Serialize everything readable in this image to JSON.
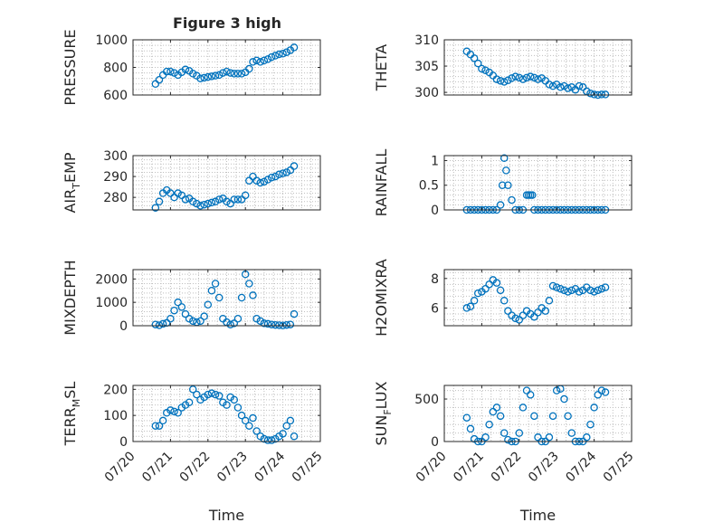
{
  "figure": {
    "title": "Figure 3 high"
  },
  "chart_data": [
    {
      "type": "scatter",
      "ylabel": "PRESSURE",
      "xlim": [
        "07/20",
        "07/25"
      ],
      "ylim": [
        600,
        1000
      ],
      "yticks": [
        "600",
        "800",
        "1000"
      ],
      "x_ticks": [],
      "x": [
        20.6,
        20.7,
        20.8,
        20.9,
        21.0,
        21.1,
        21.2,
        21.3,
        21.4,
        21.5,
        21.6,
        21.7,
        21.8,
        21.9,
        22.0,
        22.1,
        22.2,
        22.3,
        22.4,
        22.5,
        22.6,
        22.7,
        22.8,
        22.9,
        23.0,
        23.1,
        23.2,
        23.3,
        23.4,
        23.5,
        23.6,
        23.7,
        23.8,
        23.9,
        24.0,
        24.1,
        24.2,
        24.3
      ],
      "y": [
        680,
        710,
        745,
        770,
        770,
        760,
        745,
        765,
        785,
        775,
        755,
        740,
        720,
        725,
        730,
        735,
        740,
        745,
        760,
        770,
        760,
        755,
        755,
        755,
        765,
        790,
        840,
        850,
        840,
        850,
        860,
        875,
        885,
        895,
        900,
        910,
        925,
        945
      ]
    },
    {
      "type": "scatter",
      "ylabel": "THETA",
      "xlim": [
        "07/20",
        "07/25"
      ],
      "ylim": [
        299.5,
        310
      ],
      "yticks": [
        "300",
        "305",
        "310"
      ],
      "x_ticks": [],
      "x": [
        20.6,
        20.7,
        20.8,
        20.9,
        21.0,
        21.1,
        21.2,
        21.3,
        21.4,
        21.5,
        21.6,
        21.7,
        21.8,
        21.9,
        22.0,
        22.1,
        22.2,
        22.3,
        22.4,
        22.5,
        22.6,
        22.7,
        22.8,
        22.9,
        23.0,
        23.1,
        23.2,
        23.3,
        23.4,
        23.5,
        23.6,
        23.7,
        23.8,
        23.9,
        24.0,
        24.1,
        24.2,
        24.3
      ],
      "y": [
        307.8,
        307.2,
        306.5,
        305.5,
        304.5,
        304.2,
        303.8,
        303.2,
        302.5,
        302.2,
        302.0,
        302.3,
        302.7,
        303.0,
        302.8,
        302.5,
        302.8,
        303.0,
        302.8,
        302.5,
        302.7,
        302.2,
        301.5,
        301.2,
        301.5,
        301.0,
        301.2,
        300.8,
        301.0,
        300.5,
        301.2,
        301.0,
        300.2,
        299.8,
        299.6,
        299.5,
        299.6,
        299.6
      ]
    },
    {
      "type": "scatter",
      "ylabel": "AIR",
      "ylabel_sub": "T",
      "ylabel_rest": "EMP",
      "xlim": [
        "07/20",
        "07/25"
      ],
      "ylim": [
        274,
        300
      ],
      "yticks": [
        "280",
        "290",
        "300"
      ],
      "x_ticks": [],
      "x": [
        20.6,
        20.7,
        20.8,
        20.9,
        21.0,
        21.1,
        21.2,
        21.3,
        21.4,
        21.5,
        21.6,
        21.7,
        21.8,
        21.9,
        22.0,
        22.1,
        22.2,
        22.3,
        22.4,
        22.5,
        22.6,
        22.7,
        22.8,
        22.9,
        23.0,
        23.1,
        23.2,
        23.3,
        23.4,
        23.5,
        23.6,
        23.7,
        23.8,
        23.9,
        24.0,
        24.1,
        24.2,
        24.3
      ],
      "y": [
        275,
        278,
        282,
        283.5,
        282,
        280,
        282,
        281,
        279,
        279.5,
        278,
        277,
        276,
        276.5,
        277,
        277.5,
        278,
        279,
        279.5,
        278,
        277,
        279,
        279,
        279,
        281,
        288,
        290,
        288,
        287,
        287.5,
        288.5,
        289.5,
        290,
        291,
        291.5,
        292,
        293,
        295
      ]
    },
    {
      "type": "scatter",
      "ylabel": "RAINFALL",
      "xlim": [
        "07/20",
        "07/25"
      ],
      "ylim": [
        0,
        1.1
      ],
      "yticks": [
        "0",
        "0.5",
        "1"
      ],
      "x_ticks": [],
      "x": [
        20.6,
        20.7,
        20.8,
        20.9,
        21.0,
        21.1,
        21.2,
        21.3,
        21.4,
        21.5,
        21.55,
        21.6,
        21.65,
        21.7,
        21.8,
        21.9,
        22.0,
        22.1,
        22.2,
        22.25,
        22.3,
        22.35,
        22.4,
        22.5,
        22.6,
        22.7,
        22.8,
        22.9,
        23.0,
        23.1,
        23.2,
        23.3,
        23.4,
        23.5,
        23.6,
        23.7,
        23.8,
        23.9,
        24.0,
        24.1,
        24.2,
        24.3
      ],
      "y": [
        0,
        0,
        0,
        0,
        0,
        0,
        0,
        0,
        0,
        0.1,
        0.5,
        1.05,
        0.8,
        0.5,
        0.2,
        0,
        0,
        0,
        0.3,
        0.3,
        0.3,
        0.3,
        0,
        0,
        0,
        0,
        0,
        0,
        0,
        0,
        0,
        0,
        0,
        0,
        0,
        0,
        0,
        0,
        0,
        0,
        0,
        0
      ]
    },
    {
      "type": "scatter",
      "ylabel": "MIXDEPTH",
      "xlim": [
        "07/20",
        "07/25"
      ],
      "ylim": [
        0,
        2400
      ],
      "yticks": [
        "0",
        "1000",
        "2000"
      ],
      "x_ticks": [],
      "x": [
        20.6,
        20.7,
        20.8,
        20.9,
        21.0,
        21.1,
        21.2,
        21.3,
        21.4,
        21.5,
        21.6,
        21.7,
        21.8,
        21.9,
        22.0,
        22.1,
        22.2,
        22.3,
        22.4,
        22.5,
        22.6,
        22.7,
        22.8,
        22.9,
        23.0,
        23.1,
        23.2,
        23.3,
        23.4,
        23.5,
        23.6,
        23.7,
        23.8,
        23.9,
        24.0,
        24.1,
        24.2,
        24.3
      ],
      "y": [
        50,
        20,
        80,
        120,
        300,
        650,
        1000,
        800,
        500,
        300,
        200,
        150,
        200,
        400,
        900,
        1500,
        1800,
        1200,
        300,
        150,
        50,
        100,
        300,
        1200,
        2200,
        1800,
        1300,
        300,
        200,
        100,
        80,
        50,
        30,
        20,
        10,
        30,
        50,
        500
      ]
    },
    {
      "type": "scatter",
      "ylabel": "H2OMIXRA",
      "xlim": [
        "07/20",
        "07/25"
      ],
      "ylim": [
        4.8,
        8.6
      ],
      "yticks": [
        "6",
        "8"
      ],
      "x_ticks": [],
      "x": [
        20.6,
        20.7,
        20.8,
        20.9,
        21.0,
        21.1,
        21.2,
        21.3,
        21.4,
        21.5,
        21.6,
        21.7,
        21.8,
        21.9,
        22.0,
        22.1,
        22.2,
        22.3,
        22.4,
        22.5,
        22.6,
        22.7,
        22.8,
        22.9,
        23.0,
        23.1,
        23.2,
        23.3,
        23.4,
        23.5,
        23.6,
        23.7,
        23.8,
        23.9,
        24.0,
        24.1,
        24.2,
        24.3
      ],
      "y": [
        6.0,
        6.1,
        6.5,
        7.0,
        7.1,
        7.3,
        7.6,
        7.9,
        7.7,
        7.2,
        6.5,
        5.8,
        5.5,
        5.3,
        5.2,
        5.5,
        5.8,
        5.6,
        5.4,
        5.7,
        6.0,
        5.8,
        6.5,
        7.5,
        7.4,
        7.3,
        7.2,
        7.1,
        7.2,
        7.3,
        7.1,
        7.2,
        7.4,
        7.2,
        7.1,
        7.2,
        7.3,
        7.4
      ]
    },
    {
      "type": "scatter",
      "ylabel": "TERR",
      "ylabel_sub": "M",
      "ylabel_rest": "SL",
      "xlim": [
        "07/20",
        "07/25"
      ],
      "ylim": [
        0,
        215
      ],
      "yticks": [
        "0",
        "100",
        "200"
      ],
      "x_ticks": [
        "07/20",
        "07/21",
        "07/22",
        "07/23",
        "07/24",
        "07/25"
      ],
      "xlabel": "Time",
      "x": [
        20.6,
        20.7,
        20.8,
        20.9,
        21.0,
        21.1,
        21.2,
        21.3,
        21.4,
        21.5,
        21.6,
        21.7,
        21.8,
        21.9,
        22.0,
        22.1,
        22.2,
        22.3,
        22.4,
        22.5,
        22.6,
        22.7,
        22.8,
        22.9,
        23.0,
        23.1,
        23.2,
        23.3,
        23.4,
        23.5,
        23.6,
        23.7,
        23.8,
        23.9,
        24.0,
        24.1,
        24.2,
        24.3
      ],
      "y": [
        60,
        60,
        80,
        110,
        120,
        115,
        110,
        130,
        140,
        150,
        200,
        180,
        160,
        170,
        180,
        185,
        180,
        175,
        150,
        140,
        170,
        160,
        130,
        100,
        80,
        60,
        90,
        40,
        20,
        10,
        5,
        5,
        10,
        20,
        30,
        60,
        80,
        20
      ]
    },
    {
      "type": "scatter",
      "ylabel": "SUN",
      "ylabel_sub": "F",
      "ylabel_rest": "LUX",
      "xlim": [
        "07/20",
        "07/25"
      ],
      "ylim": [
        0,
        660
      ],
      "yticks": [
        "0",
        "500"
      ],
      "x_ticks": [
        "07/20",
        "07/21",
        "07/22",
        "07/23",
        "07/24",
        "07/25"
      ],
      "xlabel": "Time",
      "x": [
        20.6,
        20.7,
        20.8,
        20.9,
        21.0,
        21.1,
        21.2,
        21.3,
        21.4,
        21.5,
        21.6,
        21.7,
        21.8,
        21.9,
        22.0,
        22.1,
        22.2,
        22.3,
        22.4,
        22.5,
        22.6,
        22.7,
        22.8,
        22.9,
        23.0,
        23.1,
        23.2,
        23.3,
        23.4,
        23.5,
        23.6,
        23.7,
        23.8,
        23.9,
        24.0,
        24.1,
        24.2,
        24.3
      ],
      "y": [
        280,
        150,
        30,
        0,
        0,
        50,
        200,
        350,
        400,
        300,
        100,
        20,
        0,
        0,
        100,
        400,
        600,
        550,
        300,
        50,
        0,
        0,
        50,
        300,
        600,
        620,
        500,
        300,
        100,
        0,
        0,
        0,
        50,
        200,
        400,
        550,
        600,
        580
      ]
    }
  ]
}
